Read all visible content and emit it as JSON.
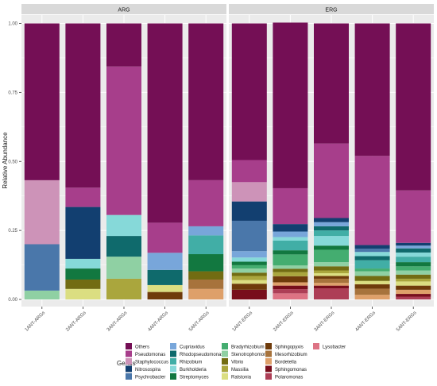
{
  "chart_data": {
    "type": "bar",
    "stacked": true,
    "ylabel": "Relative Abundance",
    "xlabel": "",
    "ylim": [
      0,
      1
    ],
    "y_ticks": [
      "0.00",
      "0.25",
      "0.50",
      "0.75",
      "1.00"
    ],
    "grid": true,
    "legend_position": "bottom",
    "legend_title": "Genus",
    "genera": [
      "Others",
      "Pseudomonas",
      "Staphylococcus",
      "Nitrosospira",
      "Psychrobacter",
      "Cupriavidus",
      "Rhodopseudomonas",
      "Rhizobium",
      "Burkholderia",
      "Streptomyces",
      "Bradyrhizobium",
      "Stenotrophomonas",
      "Vibrio",
      "Massilia",
      "Ralstonia",
      "Sphingopyxis",
      "Mesorhizobium",
      "Bordetella",
      "Sphingomonas",
      "Polaromonas",
      "Lysobacter"
    ],
    "colors": {
      "Others": "#740f55",
      "Pseudomonas": "#a73e8b",
      "Staphylococcus": "#cd93b8",
      "Nitrosospira": "#123f70",
      "Psychrobacter": "#4a77aa",
      "Cupriavidus": "#78a6da",
      "Rhodopseudomonas": "#0f6a6c",
      "Rhizobium": "#41aea6",
      "Burkholderia": "#86d9d9",
      "Streptomyces": "#127840",
      "Bradyrhizobium": "#44ad70",
      "Stenotrophomonas": "#8fd0a3",
      "Vibrio": "#726c12",
      "Massilia": "#aaa63d",
      "Ralstonia": "#dbde81",
      "Sphingopyxis": "#6f3b0b",
      "Mesorhizobium": "#a7733c",
      "Bordetella": "#dea06a",
      "Sphingomonas": "#780e1c",
      "Polaromonas": "#ad3e56",
      "Lysobacter": "#dd7384"
    },
    "panels": [
      {
        "label": "ARG",
        "samples": [
          {
            "name": "1ANT-ARGs",
            "segments": [
              [
                "Stenotrophomonas",
                0.032
              ],
              [
                "Psychrobacter",
                0.168
              ],
              [
                "Staphylococcus",
                0.232
              ],
              [
                "Others",
                0.568
              ]
            ]
          },
          {
            "name": "2ANT-ARGs",
            "segments": [
              [
                "Ralstonia",
                0.038
              ],
              [
                "Vibrio",
                0.034
              ],
              [
                "Streptomyces",
                0.04
              ],
              [
                "Burkholderia",
                0.035
              ],
              [
                "Nitrosospira",
                0.188
              ],
              [
                "Pseudomonas",
                0.07
              ],
              [
                "Others",
                0.595
              ]
            ]
          },
          {
            "name": "3ANT-ARGs",
            "segments": [
              [
                "Massilia",
                0.075
              ],
              [
                "Stenotrophomonas",
                0.08
              ],
              [
                "Rhodopseudomonas",
                0.075
              ],
              [
                "Burkholderia",
                0.076
              ],
              [
                "Pseudomonas",
                0.538
              ],
              [
                "Others",
                0.156
              ]
            ]
          },
          {
            "name": "4ANT-ARGs",
            "segments": [
              [
                "Sphingopyxis",
                0.027
              ],
              [
                "Ralstonia",
                0.025
              ],
              [
                "Rhodopseudomonas",
                0.055
              ],
              [
                "Cupriavidus",
                0.062
              ],
              [
                "Pseudomonas",
                0.109
              ],
              [
                "Others",
                0.722
              ]
            ]
          },
          {
            "name": "5ANT-ARGs",
            "segments": [
              [
                "Bordetella",
                0.038
              ],
              [
                "Mesorhizobium",
                0.034
              ],
              [
                "Vibrio",
                0.03
              ],
              [
                "Streptomyces",
                0.062
              ],
              [
                "Rhizobium",
                0.068
              ],
              [
                "Cupriavidus",
                0.033
              ],
              [
                "Pseudomonas",
                0.167
              ],
              [
                "Others",
                0.568
              ]
            ]
          }
        ]
      },
      {
        "label": "ERG",
        "samples": [
          {
            "name": "1ANT-ERGs",
            "segments": [
              [
                "Sphingomonas",
                0.035
              ],
              [
                "Sphingopyxis",
                0.022
              ],
              [
                "Ralstonia",
                0.013
              ],
              [
                "Massilia",
                0.015
              ],
              [
                "Vibrio",
                0.012
              ],
              [
                "Stenotrophomonas",
                0.015
              ],
              [
                "Bradyrhizobium",
                0.012
              ],
              [
                "Streptomyces",
                0.013
              ],
              [
                "Burkholderia",
                0.015
              ],
              [
                "Cupriavidus",
                0.023
              ],
              [
                "Psychrobacter",
                0.11
              ],
              [
                "Nitrosospira",
                0.07
              ],
              [
                "Staphylococcus",
                0.07
              ],
              [
                "Pseudomonas",
                0.08
              ],
              [
                "Others",
                0.495
              ]
            ]
          },
          {
            "name": "2ANT-ERGs",
            "segments": [
              [
                "Lysobacter",
                0.022
              ],
              [
                "Polaromonas",
                0.015
              ],
              [
                "Sphingomonas",
                0.013
              ],
              [
                "Bordetella",
                0.012
              ],
              [
                "Sphingopyxis",
                0.022
              ],
              [
                "Massilia",
                0.015
              ],
              [
                "Vibrio",
                0.012
              ],
              [
                "Stenotrophomonas",
                0.012
              ],
              [
                "Bradyrhizobium",
                0.04
              ],
              [
                "Streptomyces",
                0.015
              ],
              [
                "Rhizobium",
                0.035
              ],
              [
                "Burkholderia",
                0.013
              ],
              [
                "Cupriavidus",
                0.02
              ],
              [
                "Nitrosospira",
                0.027
              ],
              [
                "Pseudomonas",
                0.13
              ],
              [
                "Others",
                0.6
              ]
            ]
          },
          {
            "name": "3ANT-ERGs",
            "segments": [
              [
                "Polaromonas",
                0.04
              ],
              [
                "Sphingomonas",
                0.01
              ],
              [
                "Bordetella",
                0.01
              ],
              [
                "Mesorhizobium",
                0.015
              ],
              [
                "Sphingopyxis",
                0.01
              ],
              [
                "Ralstonia",
                0.01
              ],
              [
                "Massilia",
                0.01
              ],
              [
                "Vibrio",
                0.015
              ],
              [
                "Stenotrophomonas",
                0.015
              ],
              [
                "Bradyrhizobium",
                0.045
              ],
              [
                "Streptomyces",
                0.015
              ],
              [
                "Burkholderia",
                0.035
              ],
              [
                "Rhizobium",
                0.02
              ],
              [
                "Rhodopseudomonas",
                0.015
              ],
              [
                "Cupriavidus",
                0.015
              ],
              [
                "Nitrosospira",
                0.015
              ],
              [
                "Pseudomonas",
                0.27
              ],
              [
                "Others",
                0.435
              ]
            ]
          },
          {
            "name": "4ANT-ERGs",
            "segments": [
              [
                "Bordetella",
                0.017
              ],
              [
                "Mesorhizobium",
                0.022
              ],
              [
                "Sphingopyxis",
                0.016
              ],
              [
                "Ralstonia",
                0.012
              ],
              [
                "Vibrio",
                0.018
              ],
              [
                "Stenotrophomonas",
                0.017
              ],
              [
                "Bradyrhizobium",
                0.01
              ],
              [
                "Rhizobium",
                0.03
              ],
              [
                "Rhodopseudomonas",
                0.015
              ],
              [
                "Burkholderia",
                0.015
              ],
              [
                "Psychrobacter",
                0.012
              ],
              [
                "Nitrosospira",
                0.013
              ],
              [
                "Pseudomonas",
                0.323
              ],
              [
                "Others",
                0.48
              ]
            ]
          },
          {
            "name": "5ANT-ERGs",
            "segments": [
              [
                "Polaromonas",
                0.01
              ],
              [
                "Sphingomonas",
                0.01
              ],
              [
                "Bordetella",
                0.015
              ],
              [
                "Sphingopyxis",
                0.015
              ],
              [
                "Ralstonia",
                0.015
              ],
              [
                "Massilia",
                0.01
              ],
              [
                "Vibrio",
                0.015
              ],
              [
                "Stenotrophomonas",
                0.015
              ],
              [
                "Bradyrhizobium",
                0.015
              ],
              [
                "Streptomyces",
                0.015
              ],
              [
                "Rhizobium",
                0.02
              ],
              [
                "Burkholderia",
                0.015
              ],
              [
                "Rhodopseudomonas",
                0.015
              ],
              [
                "Cupriavidus",
                0.01
              ],
              [
                "Nitrosospira",
                0.01
              ],
              [
                "Pseudomonas",
                0.19
              ],
              [
                "Others",
                0.605
              ]
            ]
          }
        ]
      }
    ]
  }
}
